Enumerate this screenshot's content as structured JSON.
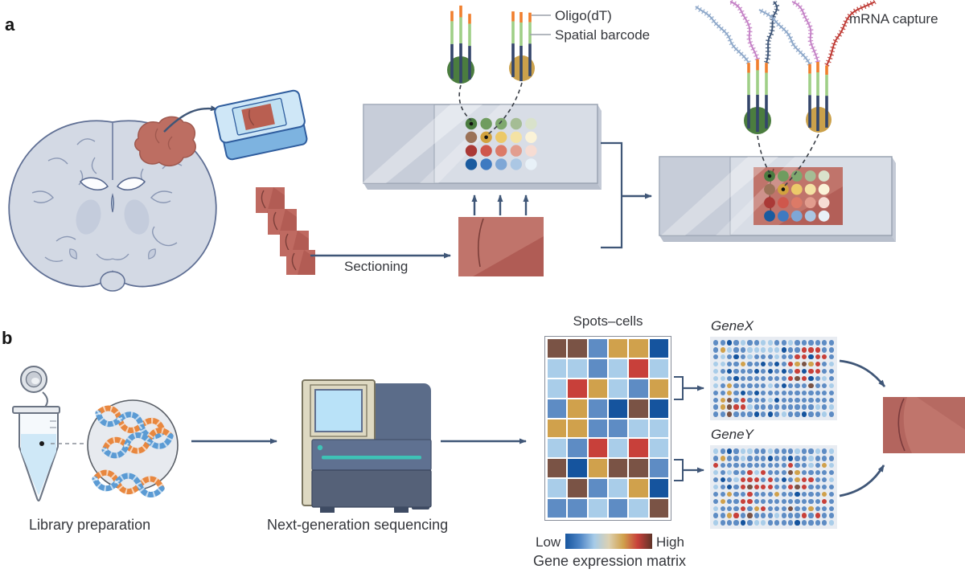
{
  "figure": {
    "panels": {
      "a": "a",
      "b": "b"
    }
  },
  "panel_a": {
    "annotations": {
      "oligo_dt": "Oligo(dT)",
      "spatial_barcode": "Spatial barcode",
      "mrna_capture": "mRNA capture",
      "sectioning": "Sectioning"
    },
    "slide_spots": {
      "rows": [
        [
          "#4a7c40",
          "#6f9c5f",
          "#7fa86e",
          "#a5bd95",
          "#d9e2cb"
        ],
        [
          "#9b7258",
          "#d2a23f",
          "#ecc969",
          "#f4e2a4",
          "#fbf3d8"
        ],
        [
          "#aa3936",
          "#cf574c",
          "#dc7a67",
          "#e29d8e",
          "#f6dcd3"
        ],
        [
          "#1a5b9f",
          "#3e7ac1",
          "#7ea7d6",
          "#abc7e4",
          "#e8f1f8"
        ]
      ],
      "highlighted": [
        [
          0,
          0
        ],
        [
          1,
          1
        ]
      ]
    }
  },
  "panel_b": {
    "labels": {
      "library_preparation": "Library preparation",
      "next_generation_sequencing": "Next-generation sequencing"
    },
    "matrix": {
      "title": "Spots–cells",
      "caption": "Gene expression matrix",
      "legend_low": "Low",
      "legend_high": "High",
      "rows": [
        "wwbggd",
        "llblrl",
        "lrglbg",
        "bgbdwd",
        "ggbbll",
        "lbrlrl",
        "wdgwwb",
        "lwblgd",
        "bblblw"
      ],
      "palette": {
        "l": "#a9cde9",
        "b": "#5e8cc4",
        "d": "#15549e",
        "r": "#c8403a",
        "g": "#d0a14c",
        "w": "#7a5345"
      }
    },
    "gene_maps": [
      {
        "label": "GeneX",
        "rows": [
          "bbdblbbllbblbbbbbb",
          "bglbbllllldbbrrrbb",
          "blbdblbbblbbrrdrrb",
          "llbbgbbdbdbrgwgrbl",
          "lbdbbbdbdbdbrdrrbb",
          "llbdbbbbbbbrwrdblb",
          "lbgbbbbblbdbbbwbbl",
          "bbgbdbdbbbbbbbbbbb",
          "bgwbrbbbldbbbbbbbb",
          "bgwrrlbbbbbbbbblbl",
          "bbwbbbdbdblbbdbblb"
        ]
      },
      {
        "label": "GeneY",
        "rows": [
          "lbdbllbblbbblbblbl",
          "bgbblbbbdbbdbblbbb",
          "rbbbbbbbbbbrbblbgl",
          "lblbbrlrbbbwgbbbbb",
          "bdblrrrbrbdbgrrbbl",
          "lbdbrwrrrbbrwrbbbb",
          "bbgbbrbbbgbbdbbbgb",
          "bgbbrrbbbbbbbbbbrb",
          "lbbbrbgrbbbwbbgbbb",
          "bbgrbwbbblbbbrbrbb",
          "lbbbdbllbbbbdbbbbl"
        ]
      }
    ]
  },
  "colors": {
    "arrow": "#3f5677",
    "bead_green": "#4b7d3f",
    "bead_gold": "#cba14b",
    "probe_navy": "#34466b",
    "probe_green": "#9fcf87",
    "probe_orange": "#f07f2e",
    "tissue_red": "#c0746b",
    "legend_gradient": [
      "#17569f",
      "#4e85c5",
      "#a6cbe8",
      "#dcd1b2",
      "#d0a14c",
      "#c8403a",
      "#5f3428"
    ]
  }
}
